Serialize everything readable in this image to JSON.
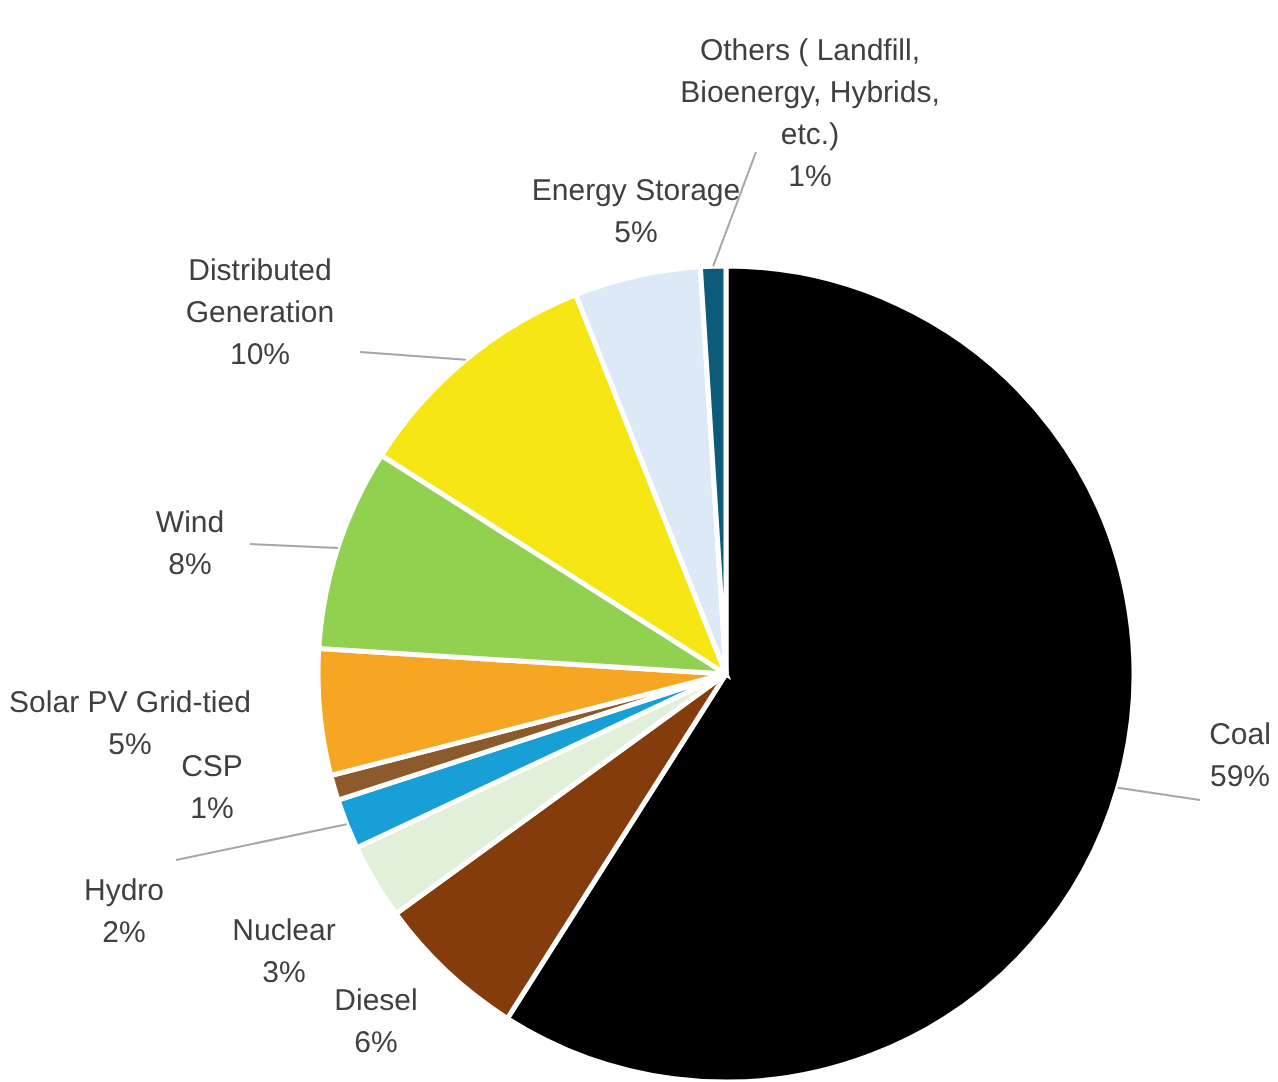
{
  "chart_data": {
    "type": "pie",
    "categories": [
      "Coal",
      "Diesel",
      "Nuclear",
      "Hydro",
      "CSP",
      "Solar PV Grid-tied",
      "Wind",
      "Distributed Generation",
      "Energy Storage",
      "Others ( Landfill, Bioenergy, Hybrids, etc.)"
    ],
    "values": [
      59,
      6,
      3,
      2,
      1,
      5,
      8,
      10,
      5,
      1
    ],
    "value_labels": [
      "59%",
      "6%",
      "3%",
      "2%",
      "1%",
      "5%",
      "8%",
      "10%",
      "5%",
      "1%"
    ],
    "colors": [
      "#000000",
      "#843c0c",
      "#e2f0d9",
      "#189fd6",
      "#8c5a2b",
      "#f6a623",
      "#92d050",
      "#f5e614",
      "#dde9f7",
      "#0d5b79"
    ]
  }
}
